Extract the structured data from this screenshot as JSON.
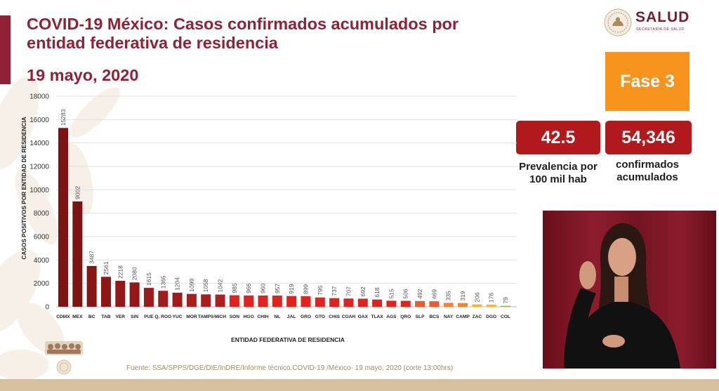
{
  "header": {
    "title_line1": "COVID-19 México: Casos confirmados acumulados por",
    "title_line2": "entidad federativa de residencia",
    "date": "19 mayo, 2020"
  },
  "logo": {
    "name": "SALUD",
    "subtitle": "SECRETARÍA DE SALUD",
    "icon": "seal-icon"
  },
  "phase": {
    "label": "Fase 3"
  },
  "stats": [
    {
      "value": "42.5",
      "label_line1": "Prevalencia por",
      "label_line2": "100 mil hab"
    },
    {
      "value": "54,346",
      "label_line1": "confirmados",
      "label_line2": "acumulados"
    }
  ],
  "footer": {
    "source": "Fuente: SSA/SPPS/DGE/DIE/InDRE/Informe técnico.COVID-19 /México- 19 mayo, 2020 (corte 13:00hrs)"
  },
  "colors": {
    "brand_maroon": "#8f2237",
    "phase_orange": "#f7941d",
    "stat_red": "#b2191c",
    "source_text": "#a68c62"
  },
  "chart_data": {
    "type": "bar",
    "categories": [
      "CDMX",
      "MEX",
      "BC",
      "TAB",
      "VER",
      "SIN",
      "PUE",
      "Q. ROO",
      "YUC",
      "MOR",
      "TAMPS",
      "MICH",
      "SON",
      "HGO",
      "CHIH",
      "NL",
      "JAL",
      "GRO",
      "GTO",
      "CHIS",
      "COAH",
      "OAX",
      "TLAX",
      "AGS",
      "QRO",
      "SLP",
      "BCS",
      "NAY",
      "CAMP",
      "ZAC",
      "DGO",
      "COL"
    ],
    "values": [
      15283,
      9002,
      3487,
      2561,
      2218,
      2080,
      1615,
      1365,
      1204,
      1099,
      1058,
      1042,
      985,
      966,
      960,
      957,
      919,
      899,
      795,
      737,
      707,
      692,
      618,
      515,
      506,
      492,
      469,
      335,
      319,
      206,
      176,
      79
    ],
    "bar_colors": [
      "#7d1414",
      "#7d1414",
      "#861515",
      "#8e1616",
      "#951818",
      "#951818",
      "#9e1b1b",
      "#a01b1b",
      "#a01b1b",
      "#a81d1d",
      "#a81d1d",
      "#b01f1f",
      "#e0231f",
      "#e0231f",
      "#e0231f",
      "#e0231f",
      "#e0231f",
      "#e0231f",
      "#e0231f",
      "#e0231f",
      "#e0231f",
      "#e0231f",
      "#e0231f",
      "#e0231f",
      "#e0231f",
      "#ec5b2a",
      "#ec5b2a",
      "#f2822e",
      "#f2822e",
      "#f6b336",
      "#f6b336",
      "#88b840"
    ],
    "title": "",
    "xlabel": "ENTIDAD FEDERATIVA DE RESIDENCIA",
    "ylabel": "CASOS POSITIVOS POR ENTIDAD DE RESIDENCIA",
    "ylim": [
      0,
      18000
    ],
    "yticks": [
      0,
      2000,
      4000,
      6000,
      8000,
      10000,
      12000,
      14000,
      16000,
      18000
    ],
    "grid": true,
    "data_labels": true
  }
}
